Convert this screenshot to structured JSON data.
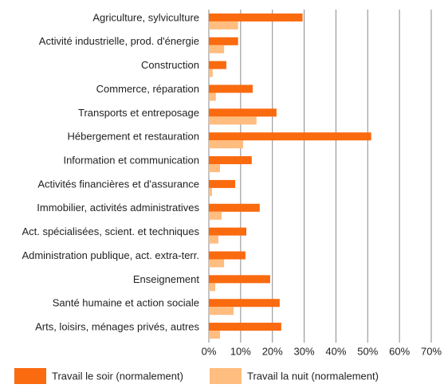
{
  "chart_data": {
    "type": "bar",
    "orientation": "horizontal",
    "categories": [
      "Agriculture, sylviculture",
      "Activité industrielle, prod. d'énergie",
      "Construction",
      "Commerce, réparation",
      "Transports et entreposage",
      "Hébergement et restauration",
      "Information et communication",
      "Activités financières et d'assurance",
      "Immobilier, activités administratives",
      "Act. spécialisées, scient. et techniques",
      "Administration publique, act. extra-terr.",
      "Enseignement",
      "Santé humaine et action sociale",
      "Arts, loisirs, ménages privés, autres"
    ],
    "series": [
      {
        "name": "Travail le soir (normalement)",
        "color": "#fa6a0f",
        "values": [
          29.5,
          9.2,
          5.5,
          13.8,
          21.3,
          51.1,
          13.5,
          8.3,
          16,
          11.8,
          11.5,
          19.3,
          22.3,
          22.8
        ]
      },
      {
        "name": "Travail la nuit (normalement)",
        "color": "#ffbd7f",
        "values": [
          9.2,
          4.8,
          1.2,
          2.2,
          15,
          10.8,
          3.5,
          1,
          4,
          3,
          4.8,
          2,
          7.8,
          3.5
        ]
      }
    ],
    "xlim": [
      0,
      70
    ],
    "xticks": [
      {
        "value": 0,
        "label": "0%"
      },
      {
        "value": 10,
        "label": "10%"
      },
      {
        "value": 20,
        "label": "20%"
      },
      {
        "value": 30,
        "label": "30%"
      },
      {
        "value": 40,
        "label": "40%"
      },
      {
        "value": 50,
        "label": "50%"
      },
      {
        "value": 60,
        "label": "60%"
      },
      {
        "value": 70,
        "label": "70%"
      }
    ],
    "grid": true,
    "legend": "bottom"
  }
}
